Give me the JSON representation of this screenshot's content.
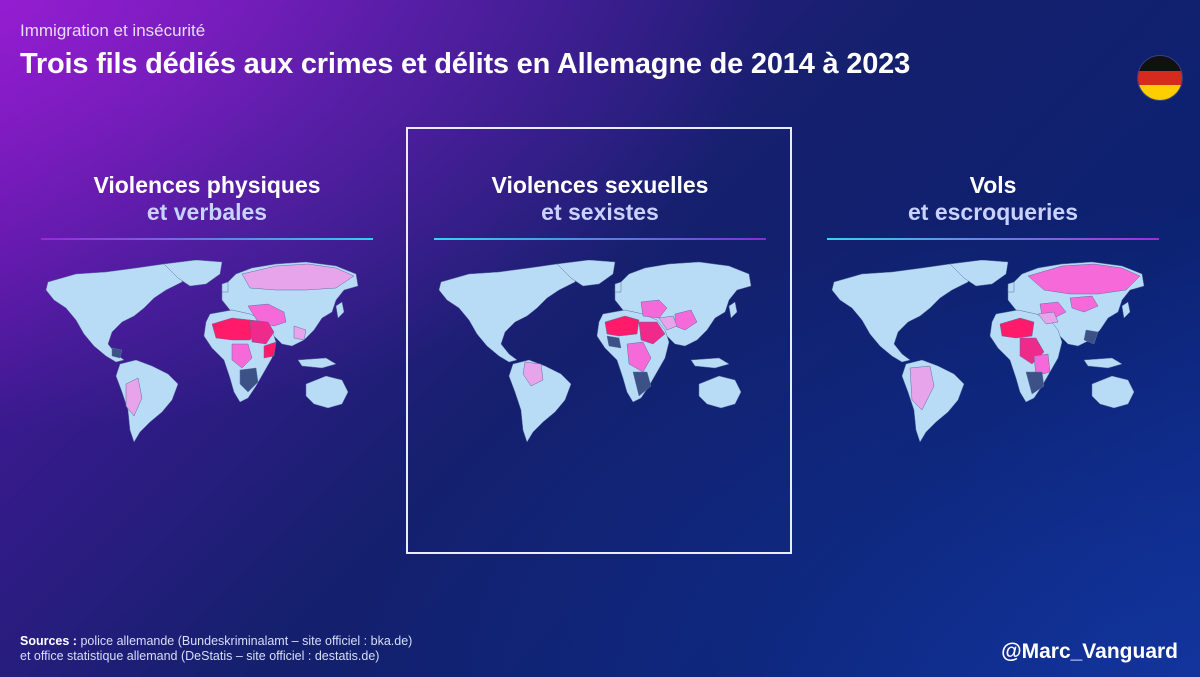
{
  "header": {
    "kicker": "Immigration et insécurité",
    "title": "Trois fils dédiés aux crimes et délits en Allemagne de 2014 à 2023",
    "flag": "germany-flag"
  },
  "panels": [
    {
      "line1": "Violences physiques",
      "line2": "et verbales",
      "selected": false
    },
    {
      "line1": "Violences sexuelles",
      "line2": "et sexistes",
      "selected": true
    },
    {
      "line1": "Vols",
      "line2": "et escroqueries",
      "selected": false
    }
  ],
  "map_colors": {
    "base": "#b9dcf6",
    "dark": "#3c5286",
    "light_pink": "#e7a4ea",
    "pink": "#f56ad8",
    "magenta": "#ee2a8a",
    "red": "#ff1a6a",
    "border": "#5d6fa3"
  },
  "footer": {
    "sources_label": "Sources :",
    "sources_line1": " police allemande (Bundeskriminalamt – site officiel : bka.de)",
    "sources_line2": "et office statistique allemand (DeStatis – site officiel : destatis.de)",
    "handle": "@Marc_Vanguard"
  }
}
